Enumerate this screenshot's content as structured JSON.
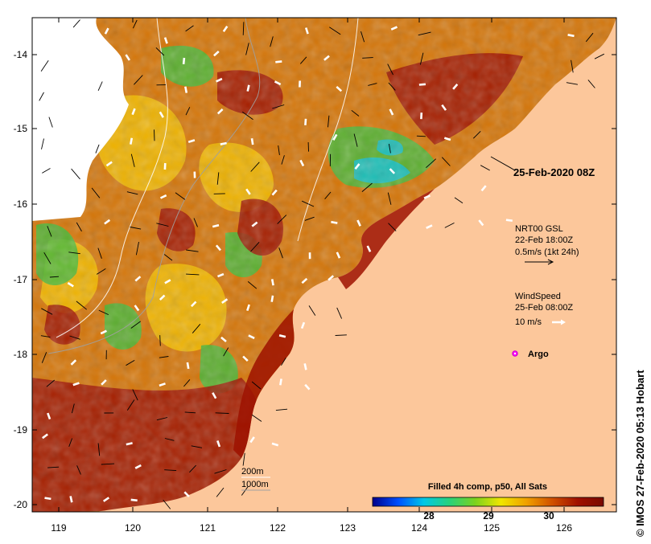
{
  "map": {
    "lat_ticks": [
      "-14",
      "-15",
      "-16",
      "-17",
      "-18",
      "-19",
      "-20"
    ],
    "lon_ticks": [
      "119",
      "120",
      "121",
      "122",
      "123",
      "124",
      "125",
      "126"
    ],
    "colors": {
      "land": "#fcc79b",
      "no_data": "#ffffff",
      "hot": "#9e1200",
      "warm": "#d47508",
      "yellow": "#f2bd00",
      "green": "#47b836",
      "cyan": "#12c0cc"
    }
  },
  "annotations": {
    "timestamp": "25-Feb-2020 08Z",
    "current_title": "NRT00 GSL",
    "current_time": "22-Feb 18:00Z",
    "current_scale": "0.5m/s (1kt 24h)",
    "wind_title": "WindSpeed",
    "wind_time": "25-Feb 08:00Z",
    "wind_scale": "10 m/s",
    "argo_label": "Argo",
    "isobath_1": "200m",
    "isobath_2": "1000m",
    "credit": "© IMOS 27-Feb-2020 05:13 Hobart"
  },
  "colorbar": {
    "title": "Filled 4h comp, p50, All Sats",
    "ticks": [
      "28",
      "29",
      "30"
    ],
    "stops": [
      "#00008c",
      "#0050ff",
      "#00c8e6",
      "#28d27a",
      "#7cd21e",
      "#f0e600",
      "#f0a000",
      "#d05000",
      "#a01000",
      "#7a0a00"
    ]
  }
}
